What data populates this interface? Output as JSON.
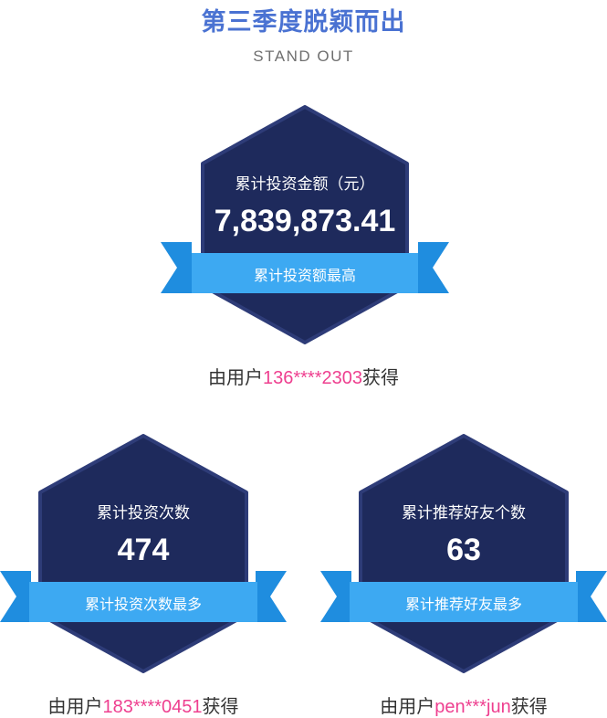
{
  "header": {
    "title": "第三季度脱颖而出",
    "subtitle": "STAND OUT"
  },
  "awards": [
    {
      "label": "累计投资金额（元）",
      "value": "7,839,873.41",
      "ribbon": "累计投资额最高",
      "winner_prefix": "由用户",
      "winner_user": "136****2303",
      "winner_suffix": "获得"
    },
    {
      "label": "累计投资次数",
      "value": "474",
      "ribbon": "累计投资次数最多",
      "winner_prefix": "由用户",
      "winner_user": "183****0451",
      "winner_suffix": "获得"
    },
    {
      "label": "累计推荐好友个数",
      "value": "63",
      "ribbon": "累计推荐好友最多",
      "winner_prefix": "由用户",
      "winner_user": "pen***jun",
      "winner_suffix": "获得"
    }
  ],
  "colors": {
    "title": "#4a72d2",
    "hexagon": "#1e2a5c",
    "hexagon_border": "#2e3c78",
    "ribbon_front": "#3da9f2",
    "ribbon_tail": "#1f8ddf",
    "winner_user": "#ee3f8f"
  }
}
